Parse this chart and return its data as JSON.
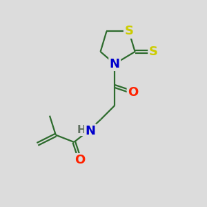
{
  "background_color": "#dcdcdc",
  "bond_color": "#2d6b2d",
  "atom_colors": {
    "S": "#cccc00",
    "N": "#0000cc",
    "O": "#ff2200",
    "H": "#607060"
  },
  "bond_width": 1.6,
  "font_size": 12.5
}
